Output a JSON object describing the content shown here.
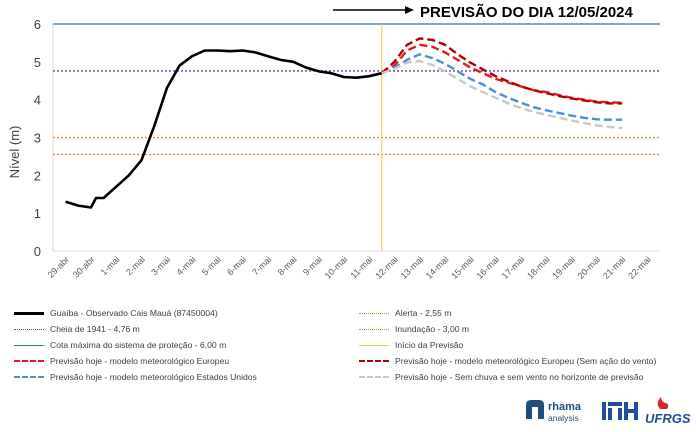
{
  "chart_data": {
    "type": "line",
    "title": "PREVISÃO DO DIA 12/05/2024",
    "ylabel": "Nível (m)",
    "xlabel": "",
    "ylim": [
      0,
      6
    ],
    "yticks": [
      "0",
      "1",
      "2",
      "3",
      "4",
      "5",
      "6"
    ],
    "categories": [
      "29-abr",
      "30-abr",
      "1-mai",
      "2-mai",
      "3-mai",
      "4-mai",
      "5-mai",
      "6-mai",
      "7-mai",
      "8-mai",
      "9-mai",
      "10-mai",
      "11-mai",
      "12-mai",
      "13-mai",
      "14-mai",
      "15-mai",
      "16-mai",
      "17-mai",
      "18-mai",
      "19-mai",
      "20-mai",
      "21-mai",
      "22-mai"
    ],
    "grid": false,
    "legend_position": "bottom",
    "series": [
      {
        "name": "Guaíba - Observado Cais Mauá (87450004)",
        "color": "#000000",
        "style": "solid",
        "x": [
          0,
          0.5,
          1,
          1.2,
          1.5,
          2,
          2.5,
          3,
          3.5,
          4,
          4.5,
          5,
          5.5,
          6,
          6.5,
          7,
          7.5,
          8,
          8.5,
          9,
          9.5,
          10,
          10.5,
          11,
          11.5,
          12,
          12.5
        ],
        "y": [
          1.3,
          1.2,
          1.15,
          1.4,
          1.4,
          1.7,
          2.0,
          2.4,
          3.3,
          4.3,
          4.9,
          5.15,
          5.3,
          5.3,
          5.28,
          5.3,
          5.25,
          5.15,
          5.05,
          5.0,
          4.85,
          4.75,
          4.7,
          4.6,
          4.58,
          4.62,
          4.7
        ]
      },
      {
        "name": "Cheia de 1941 - 4,76 m",
        "color": "#7030a0",
        "style": "dotted",
        "constant": 4.76
      },
      {
        "name": "Cota máxima do sistema de proteção - 6,00 m",
        "color": "#2e75b6",
        "style": "solid",
        "constant": 6.0
      },
      {
        "name": "Previsão hoje - modelo meteorológico Europeu",
        "color": "#e31a1c",
        "style": "dashed",
        "x": [
          12.5,
          13,
          13.5,
          14,
          14.5,
          15,
          15.5,
          16,
          16.5,
          17,
          17.5,
          18,
          18.5,
          19,
          19.5,
          20,
          20.5,
          21,
          21.5,
          22
        ],
        "y": [
          4.7,
          4.9,
          5.3,
          5.45,
          5.4,
          5.25,
          5.05,
          4.85,
          4.7,
          4.55,
          4.45,
          4.35,
          4.25,
          4.2,
          4.12,
          4.05,
          4.0,
          3.95,
          3.93,
          3.92
        ]
      },
      {
        "name": "Previsão hoje - modelo meteorológico Estados Unidos",
        "color": "#4a8fd6",
        "style": "dashed",
        "x": [
          12.5,
          13,
          13.5,
          14,
          14.5,
          15,
          15.5,
          16,
          16.5,
          17,
          17.5,
          18,
          18.5,
          19,
          19.5,
          20,
          20.5,
          21,
          21.5,
          22
        ],
        "y": [
          4.7,
          4.85,
          5.05,
          5.2,
          5.1,
          4.95,
          4.75,
          4.55,
          4.4,
          4.2,
          4.05,
          3.92,
          3.8,
          3.72,
          3.65,
          3.58,
          3.52,
          3.48,
          3.47,
          3.47
        ]
      },
      {
        "name": "Alerta - 2,55 m",
        "color": "#ed7d31",
        "style": "dotted",
        "constant": 2.55
      },
      {
        "name": "Inundação - 3,00 m",
        "color": "#ed7d31",
        "style": "dotted",
        "constant": 3.0
      },
      {
        "name": "Início da Previsão",
        "color": "#f2c14e",
        "style": "solid",
        "vertical_at": 12.5
      },
      {
        "name": "Previsão hoje - modelo meteorológico Europeu (Sem ação do vento)",
        "color": "#b00000",
        "style": "dashed",
        "x": [
          12.5,
          13,
          13.5,
          14,
          14.5,
          15,
          15.5,
          16,
          16.5,
          17,
          17.5,
          18,
          18.5,
          19,
          19.5,
          20,
          20.5,
          21,
          21.5,
          22
        ],
        "y": [
          4.7,
          5.0,
          5.45,
          5.62,
          5.58,
          5.45,
          5.2,
          4.98,
          4.8,
          4.62,
          4.48,
          4.35,
          4.25,
          4.17,
          4.1,
          4.03,
          3.98,
          3.93,
          3.9,
          3.9
        ]
      },
      {
        "name": "Previsão hoje - Sem chuva e sem vento no horizonte de previsão",
        "color": "#c8c8c8",
        "style": "dashed",
        "x": [
          12.5,
          13,
          13.5,
          14,
          14.5,
          15,
          15.5,
          16,
          16.5,
          17,
          17.5,
          18,
          18.5,
          19,
          19.5,
          20,
          20.5,
          21,
          21.5,
          22
        ],
        "y": [
          4.7,
          4.82,
          4.98,
          5.02,
          4.92,
          4.75,
          4.55,
          4.35,
          4.2,
          4.05,
          3.9,
          3.78,
          3.68,
          3.6,
          3.52,
          3.45,
          3.38,
          3.32,
          3.28,
          3.25
        ]
      }
    ]
  },
  "legend": [
    {
      "label": "Guaíba - Observado Cais Mauá (87450004)",
      "color": "#000000",
      "style": "solid-thick"
    },
    {
      "label": "Alerta  - 2,55 m",
      "color": "#ed7d31",
      "style": "dotted"
    },
    {
      "label": "Cheia de 1941 - 4,76 m",
      "color": "#7030a0",
      "style": "dotted"
    },
    {
      "label": "Inundação - 3,00 m",
      "color": "#ed7d31",
      "style": "dotted"
    },
    {
      "label": "Cota máxima do sistema de proteção - 6,00 m",
      "color": "#2e75b6",
      "style": "solid"
    },
    {
      "label": "Início da Previsão",
      "color": "#f2c14e",
      "style": "solid"
    },
    {
      "label": "Previsão hoje - modelo meteorológico Europeu",
      "color": "#e31a1c",
      "style": "dashed"
    },
    {
      "label": "Previsão hoje - modelo meteorológico Europeu (Sem ação do vento)",
      "color": "#b00000",
      "style": "dashed"
    },
    {
      "label": "Previsão hoje - modelo meteorológico Estados Unidos",
      "color": "#4a8fd6",
      "style": "dashed"
    },
    {
      "label": "Previsão hoje - Sem chuva e sem vento no horizonte de previsão",
      "color": "#c8c8c8",
      "style": "dashed"
    }
  ],
  "logos": {
    "rhama_line1": "rhama",
    "rhama_line2": "analysis",
    "ufrgs": "UFRGS",
    "rhama_color": "#1f4e79",
    "ufrgs_color": "#1f4e9c",
    "flame_color": "#d62828"
  }
}
